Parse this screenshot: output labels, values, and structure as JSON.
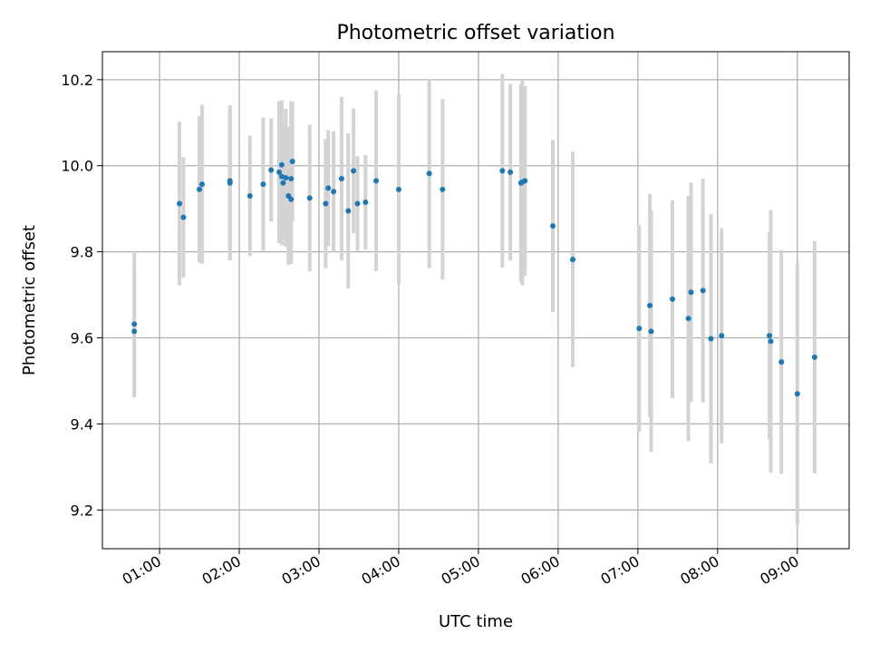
{
  "chart_data": {
    "type": "scatter",
    "title": "Photometric offset variation",
    "xlabel": "UTC time",
    "ylabel": "Photometric offset",
    "xlim": [
      "00:17",
      "09:39"
    ],
    "ylim": [
      9.11,
      10.265
    ],
    "x_ticks": [
      "01:00",
      "02:00",
      "03:00",
      "04:00",
      "05:00",
      "06:00",
      "07:00",
      "08:00",
      "09:00"
    ],
    "y_ticks": [
      "9.2",
      "9.4",
      "9.6",
      "9.8",
      "10.0",
      "10.2"
    ],
    "grid": true,
    "colors": {
      "points": "#1f77b4",
      "errorbars": "#d3d3d3",
      "grid": "#b0b0b0"
    },
    "series": [
      {
        "x": [
          "00:41",
          "00:41",
          "01:15",
          "01:18",
          "01:30",
          "01:32",
          "01:53",
          "01:53",
          "02:08",
          "02:18",
          "02:24",
          "02:30",
          "02:32",
          "02:32",
          "02:33",
          "02:35",
          "02:37",
          "02:39",
          "02:39",
          "02:40",
          "02:53",
          "03:05",
          "03:07",
          "03:11",
          "03:17",
          "03:22",
          "03:26",
          "03:29",
          "03:35",
          "03:43",
          "04:00",
          "04:23",
          "04:33",
          "05:18",
          "05:24",
          "05:32",
          "05:33",
          "05:35",
          "05:56",
          "06:11",
          "07:01",
          "07:09",
          "07:10",
          "07:26",
          "07:38",
          "07:40",
          "07:49",
          "07:55",
          "08:03",
          "08:39",
          "08:40",
          "08:48",
          "09:00",
          "09:13"
        ],
        "y": [
          9.615,
          9.632,
          9.912,
          9.88,
          9.945,
          9.957,
          9.96,
          9.965,
          9.93,
          9.957,
          9.99,
          9.985,
          10.002,
          9.975,
          9.96,
          9.972,
          9.93,
          9.922,
          9.97,
          10.01,
          9.925,
          9.912,
          9.948,
          9.94,
          9.97,
          9.895,
          9.988,
          9.912,
          9.915,
          9.965,
          9.945,
          9.982,
          9.945,
          9.988,
          9.985,
          9.96,
          9.962,
          9.965,
          9.86,
          9.782,
          9.622,
          9.675,
          9.615,
          9.69,
          9.645,
          9.706,
          9.71,
          9.598,
          9.605,
          9.605,
          9.592,
          9.544,
          9.47,
          9.555
        ],
        "err": [
          0.15,
          0.17,
          0.19,
          0.14,
          0.17,
          0.185,
          0.18,
          0.175,
          0.14,
          0.155,
          0.12,
          0.165,
          0.15,
          0.16,
          0.13,
          0.16,
          0.16,
          0.15,
          0.18,
          0.14,
          0.17,
          0.15,
          0.135,
          0.14,
          0.19,
          0.18,
          0.145,
          0.11,
          0.11,
          0.21,
          0.22,
          0.22,
          0.21,
          0.225,
          0.205,
          0.23,
          0.24,
          0.22,
          0.2,
          0.25,
          0.24,
          0.26,
          0.28,
          0.23,
          0.285,
          0.255,
          0.26,
          0.29,
          0.25,
          0.24,
          0.305,
          0.26,
          0.305,
          0.27
        ]
      }
    ]
  }
}
